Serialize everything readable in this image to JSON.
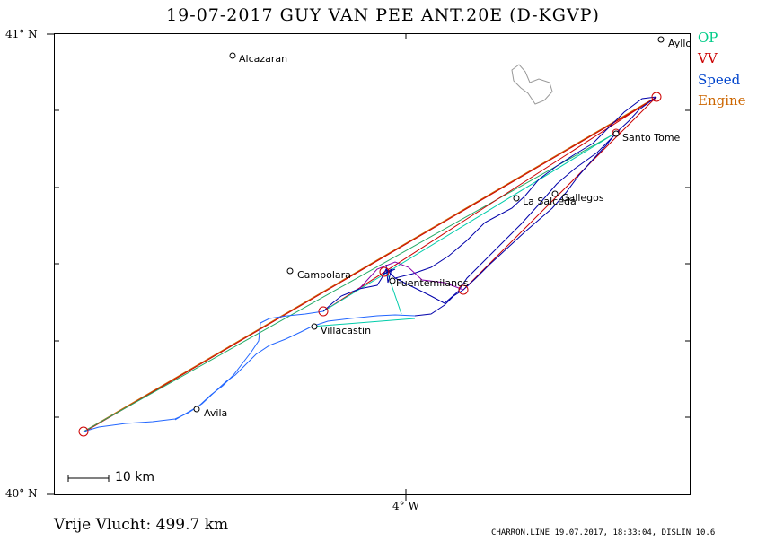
{
  "title": "19-07-2017   GUY VAN PEE   ANT.20E (D-KGVP)",
  "axes": {
    "lat_top": "41° N",
    "lat_bottom": "40° N",
    "lon_label": "4° W"
  },
  "legend": [
    {
      "label": "OP",
      "color": "#00cc88"
    },
    {
      "label": "VV",
      "color": "#cc0000"
    },
    {
      "label": "Speed",
      "color": "#0044cc"
    },
    {
      "label": "Engine",
      "color": "#cc6600"
    }
  ],
  "places": {
    "alcazaran": "Alcazaran",
    "ayllon": "Ayllo",
    "santo_tome": "Santo Tome",
    "gallegos": "Gallegos",
    "la_salceda": "La Salceda",
    "campolara": "Campolara",
    "fuentemilanos": "Fuentemilanos",
    "villacastin": "Villacastin",
    "avila": "Avila"
  },
  "scale_label": "10 km",
  "free_flight": "Vrije Vlucht:  499.7 km",
  "footer": "CHARRON.LINE 19.07.2017, 18:33:04, DISLIN 10.6",
  "colors": {
    "track": "#0000aa",
    "track_light": "#2266ff",
    "frame": "#000000"
  }
}
